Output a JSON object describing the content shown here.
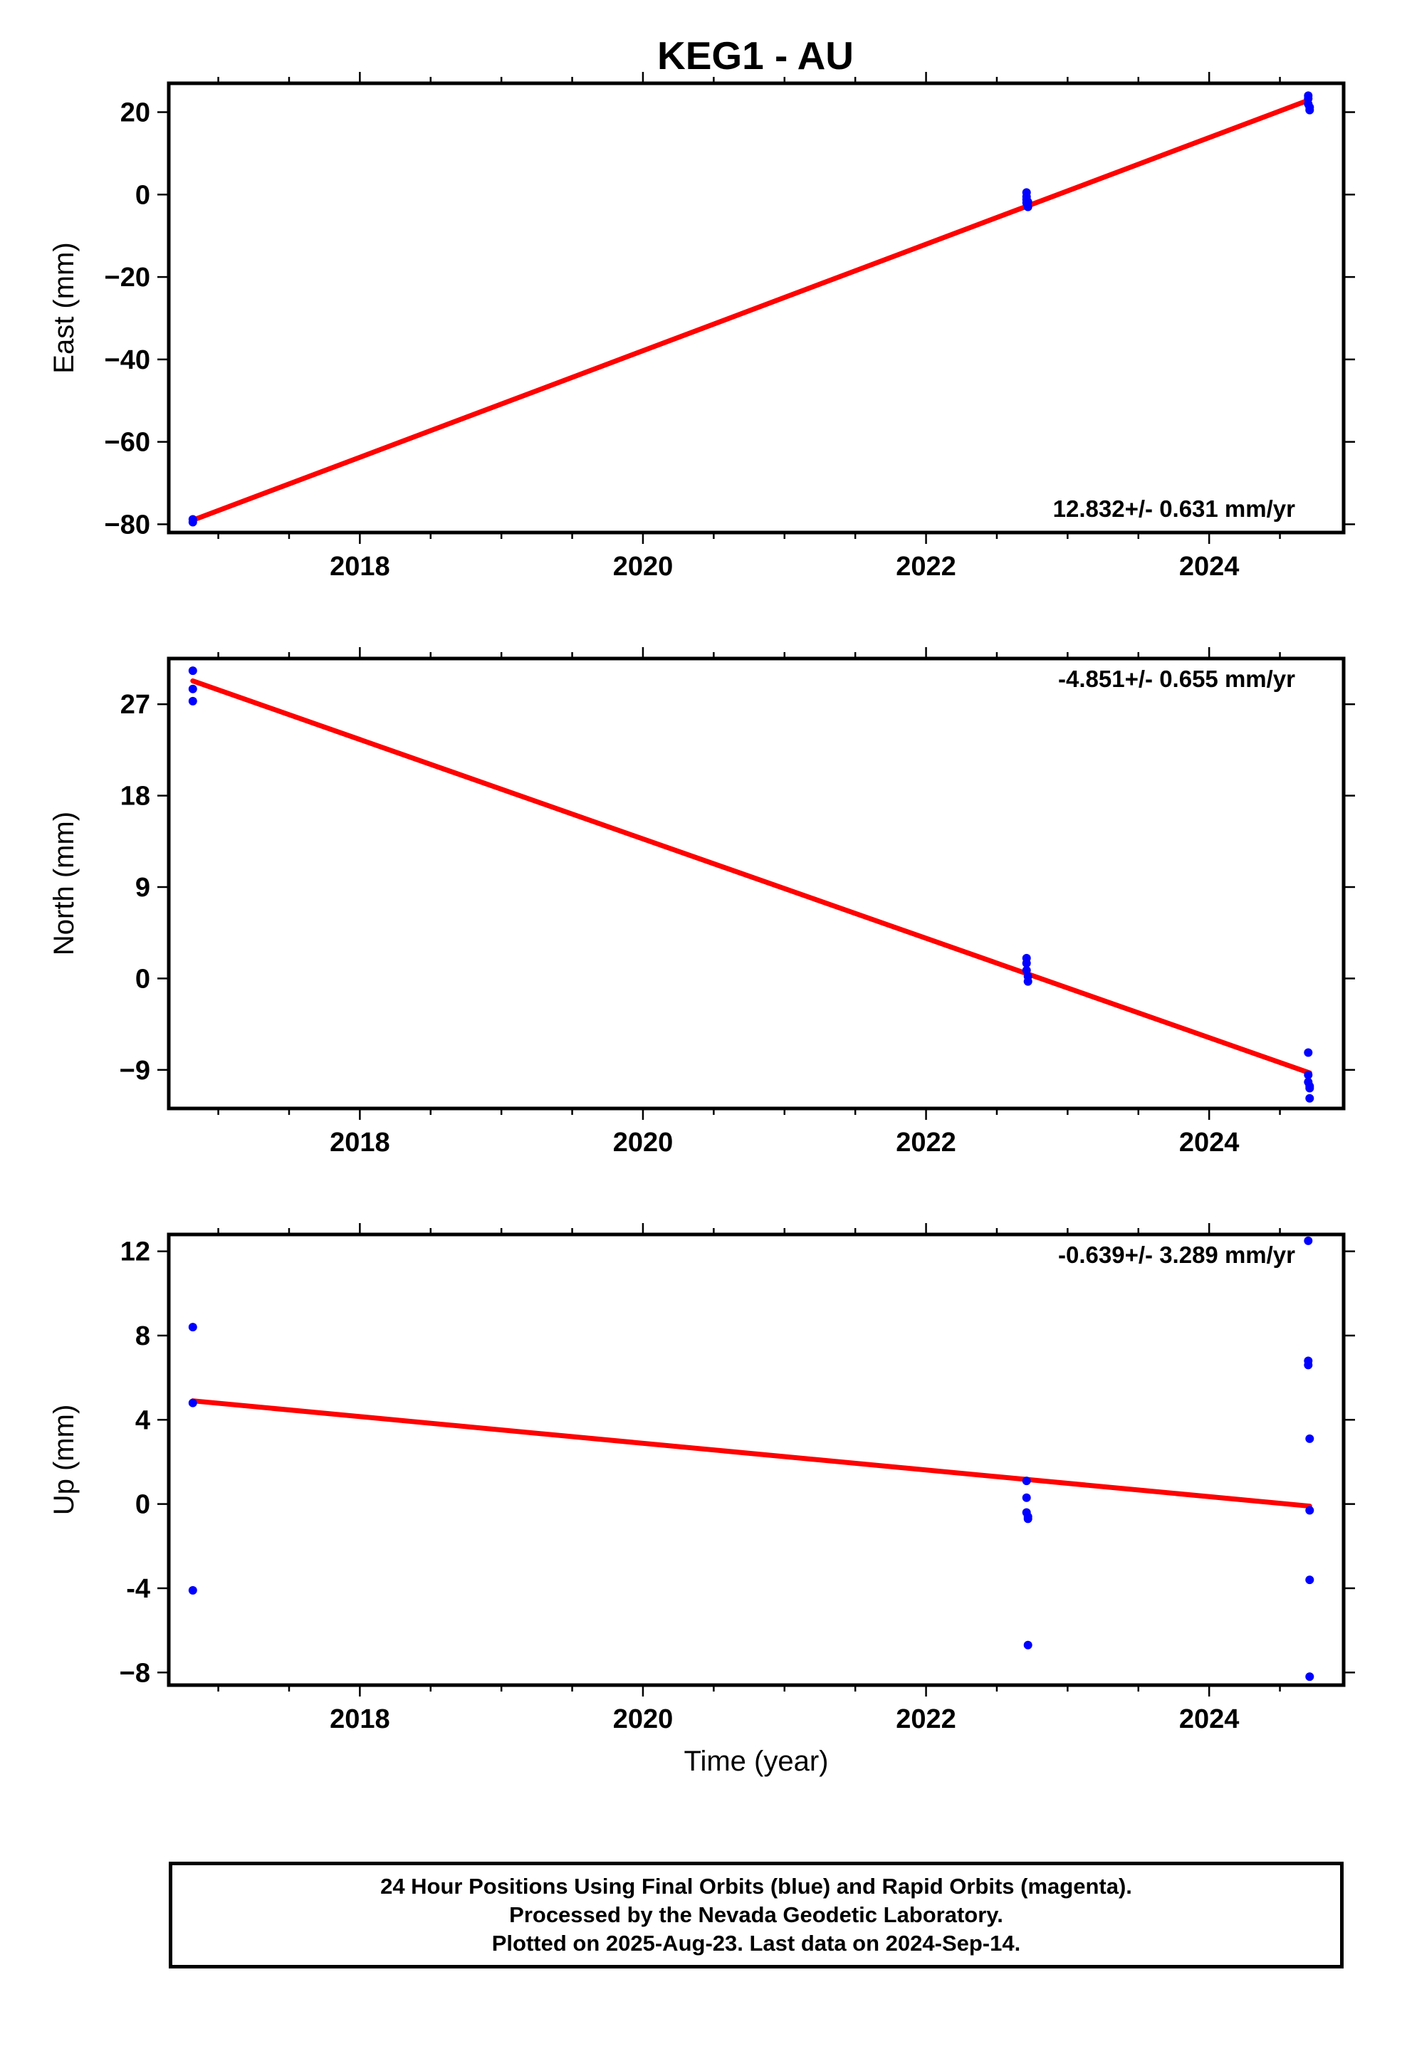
{
  "title": "KEG1 - AU",
  "chart_data": [
    {
      "type": "scatter",
      "name": "east",
      "ylabel": "East (mm)",
      "xlabel": "",
      "xlim": [
        2016.65,
        2024.95
      ],
      "ylim": [
        -82,
        27
      ],
      "xticks": [
        2018,
        2020,
        2022,
        2024
      ],
      "yticks": [
        -80,
        -60,
        -40,
        -20,
        0,
        20
      ],
      "ytick_labels": [
        "−80",
        "−60",
        "−40",
        "−20",
        "0",
        "20"
      ],
      "rate_label": "12.832+/- 0.631 mm/yr",
      "rate_label_position": "bottom-right",
      "points": {
        "x": [
          2016.82,
          2016.82,
          2022.71,
          2022.71,
          2022.71,
          2022.71,
          2022.72,
          2022.72,
          2024.7,
          2024.7,
          2024.7,
          2024.71,
          2024.71
        ],
        "y": [
          -79.5,
          -78.8,
          0.5,
          -0.5,
          -1.2,
          -2.0,
          -3.0,
          -1.8,
          24.0,
          23.3,
          22.0,
          21.2,
          20.5
        ]
      },
      "trend": {
        "x": [
          2016.82,
          2024.71
        ],
        "y": [
          -79.0,
          23.0
        ]
      }
    },
    {
      "type": "scatter",
      "name": "north",
      "ylabel": "North (mm)",
      "xlabel": "",
      "xlim": [
        2016.65,
        2024.95
      ],
      "ylim": [
        -12.8,
        31.5
      ],
      "xticks": [
        2018,
        2020,
        2022,
        2024
      ],
      "yticks": [
        -9,
        0,
        9,
        18,
        27
      ],
      "ytick_labels": [
        "−9",
        "0",
        "9",
        "18",
        "27"
      ],
      "rate_label": "-4.851+/- 0.655 mm/yr",
      "rate_label_position": "top-right",
      "points": {
        "x": [
          2016.82,
          2016.82,
          2016.82,
          2022.71,
          2022.71,
          2022.71,
          2022.72,
          2022.72,
          2024.7,
          2024.7,
          2024.7,
          2024.71,
          2024.71,
          2024.71
        ],
        "y": [
          30.3,
          28.5,
          27.3,
          2.0,
          1.5,
          0.8,
          0.2,
          -0.3,
          -7.3,
          -9.5,
          -10.2,
          -10.6,
          -10.8,
          -11.8
        ]
      },
      "trend": {
        "x": [
          2016.82,
          2024.71
        ],
        "y": [
          29.3,
          -9.3
        ]
      }
    },
    {
      "type": "scatter",
      "name": "up",
      "ylabel": "Up (mm)",
      "xlabel": "Time (year)",
      "xlim": [
        2016.65,
        2024.95
      ],
      "ylim": [
        -8.6,
        12.8
      ],
      "xticks": [
        2018,
        2020,
        2022,
        2024
      ],
      "yticks": [
        -8,
        -4,
        0,
        4,
        8,
        12
      ],
      "ytick_labels": [
        "−8",
        "-4",
        "0",
        "4",
        "8",
        "12"
      ],
      "rate_label": "-0.639+/- 3.289 mm/yr",
      "rate_label_position": "top-right",
      "points": {
        "x": [
          2016.82,
          2016.82,
          2016.82,
          2022.71,
          2022.71,
          2022.71,
          2022.72,
          2022.72,
          2022.72,
          2024.7,
          2024.7,
          2024.7,
          2024.71,
          2024.71,
          2024.71,
          2024.71
        ],
        "y": [
          8.4,
          4.8,
          -4.1,
          1.1,
          0.3,
          -0.4,
          -0.7,
          -0.6,
          -6.7,
          12.5,
          6.8,
          6.6,
          3.1,
          -0.3,
          -3.6,
          -8.2
        ]
      },
      "trend": {
        "x": [
          2016.82,
          2024.71
        ],
        "y": [
          4.9,
          -0.1
        ]
      }
    }
  ],
  "colors": {
    "points": "#0000ff",
    "trend": "#ff0000",
    "frame": "#000000",
    "text": "#000000"
  },
  "footer": {
    "line1": "24 Hour Positions Using Final Orbits (blue) and Rapid Orbits (magenta).",
    "line2": "Processed by the Nevada Geodetic Laboratory.",
    "line3": "Plotted on 2025-Aug-23. Last data on 2024-Sep-14."
  }
}
